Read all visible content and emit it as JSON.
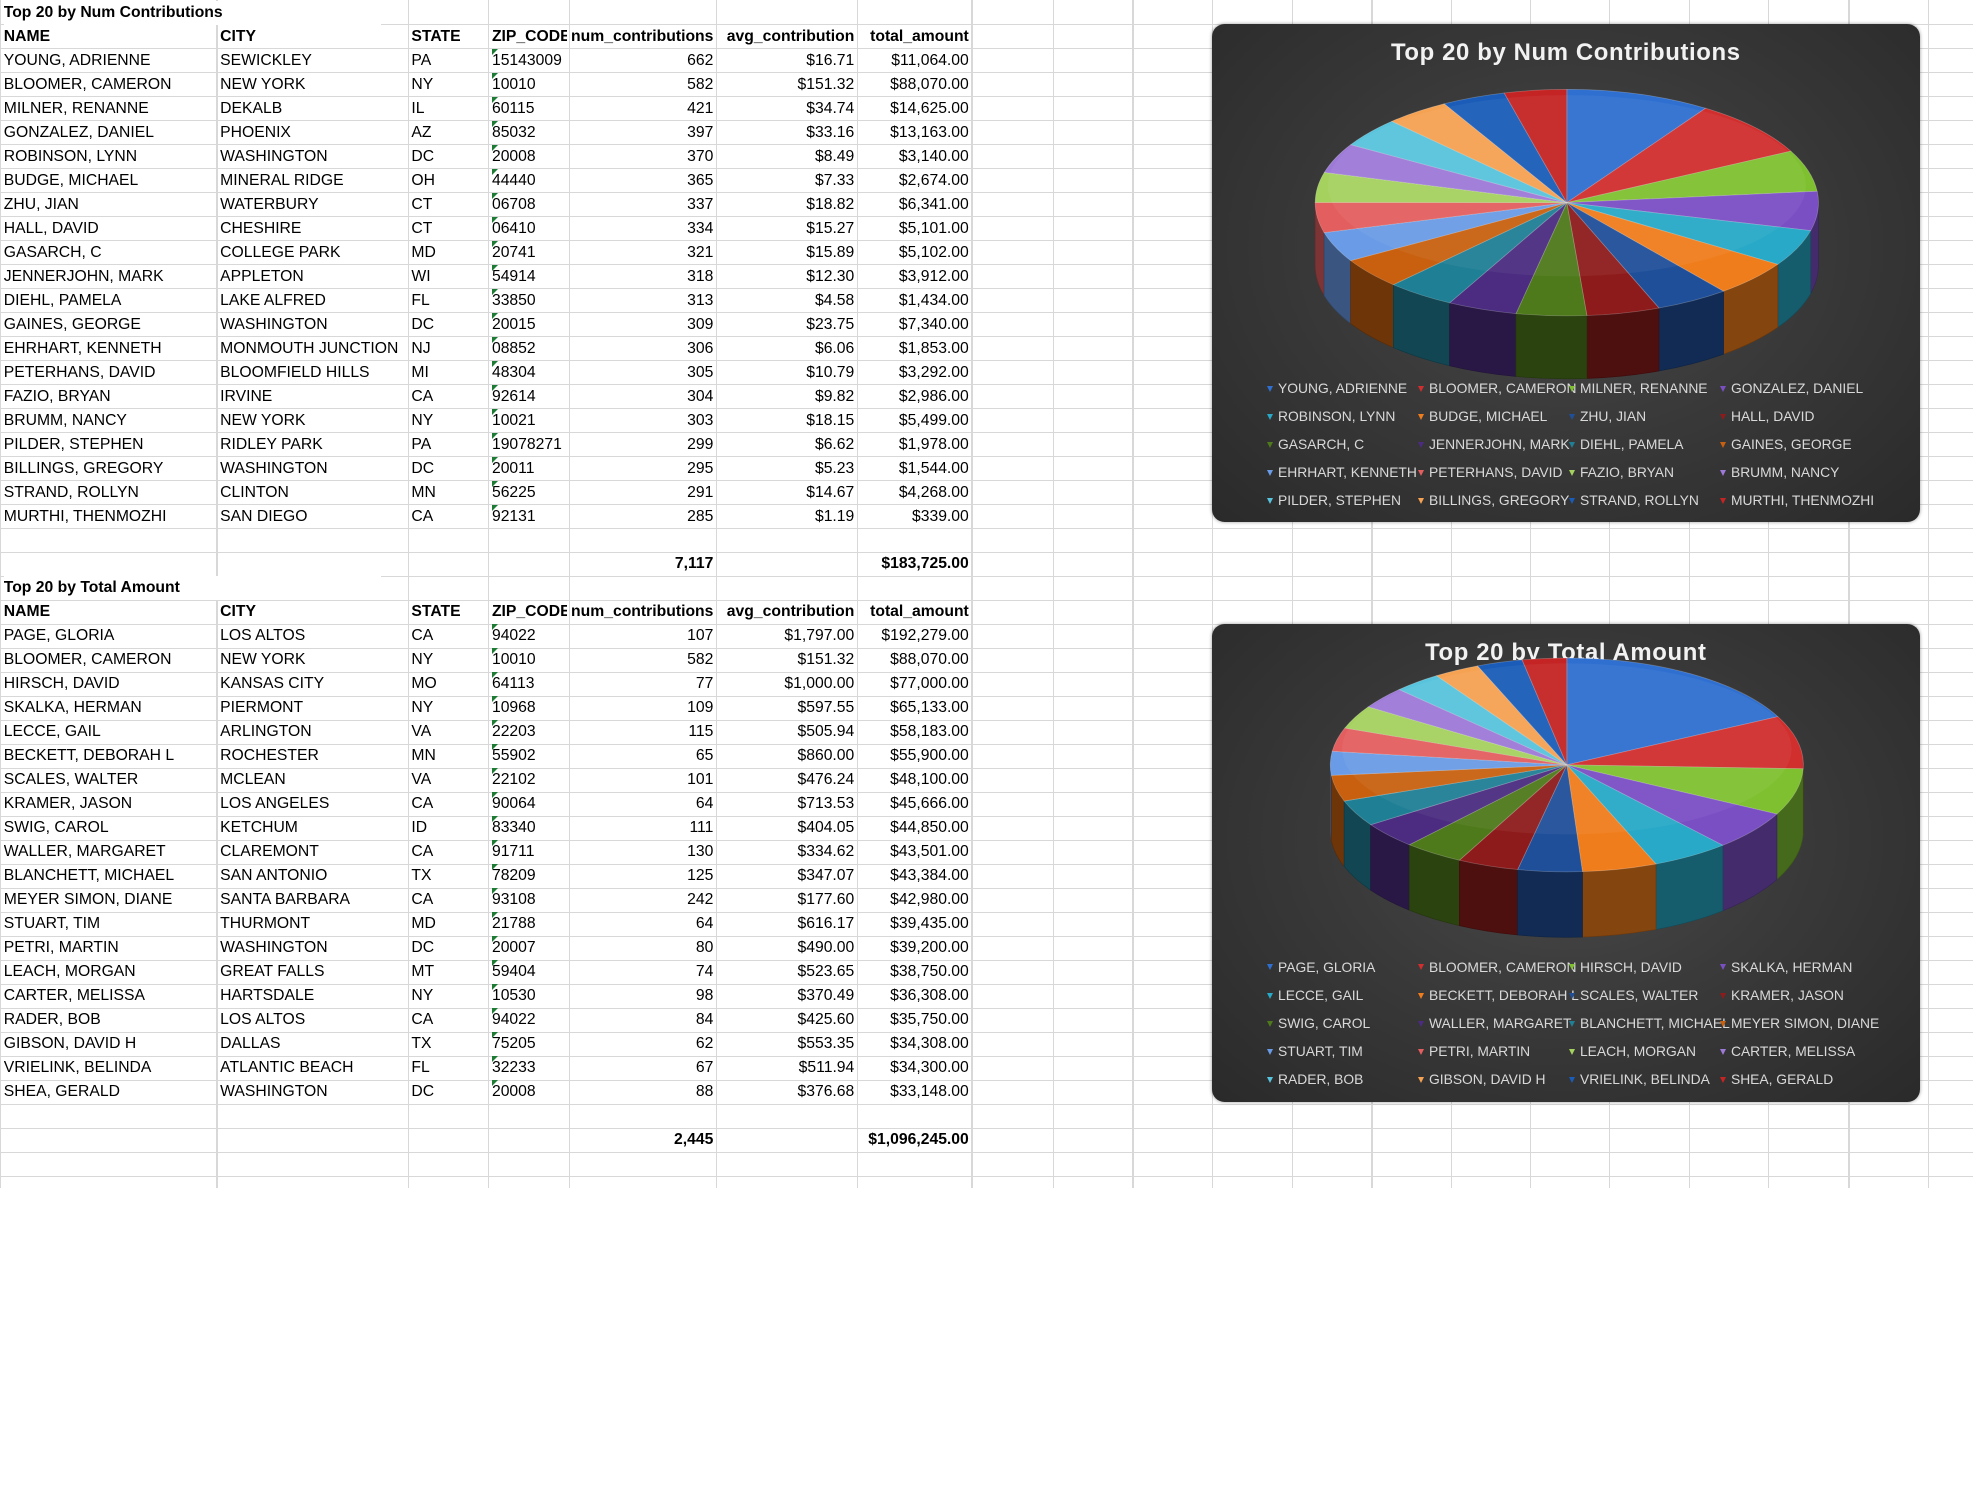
{
  "colors": [
    "#2f6fd0",
    "#d12e2e",
    "#7fc031",
    "#7b4fc4",
    "#27a9c7",
    "#f07d1c",
    "#1f4f99",
    "#8e1b1b",
    "#4f7a1b",
    "#4b2c80",
    "#1f7f95",
    "#c8600f",
    "#6a9be6",
    "#e35e5e",
    "#a5d15e",
    "#9d7ad8",
    "#58c3dc",
    "#f6a253",
    "#1a5cb8",
    "#c42424"
  ],
  "table1": {
    "title": "Top 20 by Num Contributions",
    "headers": [
      "NAME",
      "CITY",
      "STATE",
      "ZIP_CODE",
      "num_contributions",
      "avg_contribution",
      "total_amount"
    ],
    "rows": [
      [
        "YOUNG, ADRIENNE",
        "SEWICKLEY",
        "PA",
        "15143009",
        "662",
        "$16.71",
        "$11,064.00"
      ],
      [
        "BLOOMER, CAMERON",
        "NEW YORK",
        "NY",
        "10010",
        "582",
        "$151.32",
        "$88,070.00"
      ],
      [
        "MILNER, RENANNE",
        "DEKALB",
        "IL",
        "60115",
        "421",
        "$34.74",
        "$14,625.00"
      ],
      [
        "GONZALEZ, DANIEL",
        "PHOENIX",
        "AZ",
        "85032",
        "397",
        "$33.16",
        "$13,163.00"
      ],
      [
        "ROBINSON, LYNN",
        "WASHINGTON",
        "DC",
        "20008",
        "370",
        "$8.49",
        "$3,140.00"
      ],
      [
        "BUDGE, MICHAEL",
        "MINERAL RIDGE",
        "OH",
        "44440",
        "365",
        "$7.33",
        "$2,674.00"
      ],
      [
        "ZHU, JIAN",
        "WATERBURY",
        "CT",
        "06708",
        "337",
        "$18.82",
        "$6,341.00"
      ],
      [
        "HALL, DAVID",
        "CHESHIRE",
        "CT",
        "06410",
        "334",
        "$15.27",
        "$5,101.00"
      ],
      [
        "GASARCH, C",
        "COLLEGE PARK",
        "MD",
        "20741",
        "321",
        "$15.89",
        "$5,102.00"
      ],
      [
        "JENNERJOHN, MARK",
        "APPLETON",
        "WI",
        "54914",
        "318",
        "$12.30",
        "$3,912.00"
      ],
      [
        "DIEHL, PAMELA",
        "LAKE ALFRED",
        "FL",
        "33850",
        "313",
        "$4.58",
        "$1,434.00"
      ],
      [
        "GAINES, GEORGE",
        "WASHINGTON",
        "DC",
        "20015",
        "309",
        "$23.75",
        "$7,340.00"
      ],
      [
        "EHRHART, KENNETH",
        "MONMOUTH JUNCTION",
        "NJ",
        "08852",
        "306",
        "$6.06",
        "$1,853.00"
      ],
      [
        "PETERHANS, DAVID",
        "BLOOMFIELD HILLS",
        "MI",
        "48304",
        "305",
        "$10.79",
        "$3,292.00"
      ],
      [
        "FAZIO, BRYAN",
        "IRVINE",
        "CA",
        "92614",
        "304",
        "$9.82",
        "$2,986.00"
      ],
      [
        "BRUMM, NANCY",
        "NEW YORK",
        "NY",
        "10021",
        "303",
        "$18.15",
        "$5,499.00"
      ],
      [
        "PILDER, STEPHEN",
        "RIDLEY PARK",
        "PA",
        "19078271",
        "299",
        "$6.62",
        "$1,978.00"
      ],
      [
        "BILLINGS, GREGORY",
        "WASHINGTON",
        "DC",
        "20011",
        "295",
        "$5.23",
        "$1,544.00"
      ],
      [
        "STRAND, ROLLYN",
        "CLINTON",
        "MN",
        "56225",
        "291",
        "$14.67",
        "$4,268.00"
      ],
      [
        "MURTHI, THENMOZHI",
        "SAN DIEGO",
        "CA",
        "92131",
        "285",
        "$1.19",
        "$339.00"
      ]
    ],
    "total_num": "7,117",
    "total_amount": "$183,725.00"
  },
  "table2": {
    "title": "Top 20 by Total Amount",
    "headers": [
      "NAME",
      "CITY",
      "STATE",
      "ZIP_CODE",
      "num_contributions",
      "avg_contribution",
      "total_amount"
    ],
    "rows": [
      [
        "PAGE, GLORIA",
        "LOS ALTOS",
        "CA",
        "94022",
        "107",
        "$1,797.00",
        "$192,279.00"
      ],
      [
        "BLOOMER, CAMERON",
        "NEW YORK",
        "NY",
        "10010",
        "582",
        "$151.32",
        "$88,070.00"
      ],
      [
        "HIRSCH, DAVID",
        "KANSAS CITY",
        "MO",
        "64113",
        "77",
        "$1,000.00",
        "$77,000.00"
      ],
      [
        "SKALKA, HERMAN",
        "PIERMONT",
        "NY",
        "10968",
        "109",
        "$597.55",
        "$65,133.00"
      ],
      [
        "LECCE, GAIL",
        "ARLINGTON",
        "VA",
        "22203",
        "115",
        "$505.94",
        "$58,183.00"
      ],
      [
        "BECKETT, DEBORAH L",
        "ROCHESTER",
        "MN",
        "55902",
        "65",
        "$860.00",
        "$55,900.00"
      ],
      [
        "SCALES, WALTER",
        "MCLEAN",
        "VA",
        "22102",
        "101",
        "$476.24",
        "$48,100.00"
      ],
      [
        "KRAMER, JASON",
        "LOS ANGELES",
        "CA",
        "90064",
        "64",
        "$713.53",
        "$45,666.00"
      ],
      [
        "SWIG, CAROL",
        "KETCHUM",
        "ID",
        "83340",
        "111",
        "$404.05",
        "$44,850.00"
      ],
      [
        "WALLER, MARGARET",
        "CLAREMONT",
        "CA",
        "91711",
        "130",
        "$334.62",
        "$43,501.00"
      ],
      [
        "BLANCHETT, MICHAEL",
        "SAN ANTONIO",
        "TX",
        "78209",
        "125",
        "$347.07",
        "$43,384.00"
      ],
      [
        "MEYER SIMON, DIANE",
        "SANTA BARBARA",
        "CA",
        "93108",
        "242",
        "$177.60",
        "$42,980.00"
      ],
      [
        "STUART, TIM",
        "THURMONT",
        "MD",
        "21788",
        "64",
        "$616.17",
        "$39,435.00"
      ],
      [
        "PETRI, MARTIN",
        "WASHINGTON",
        "DC",
        "20007",
        "80",
        "$490.00",
        "$39,200.00"
      ],
      [
        "LEACH, MORGAN",
        "GREAT FALLS",
        "MT",
        "59404",
        "74",
        "$523.65",
        "$38,750.00"
      ],
      [
        "CARTER, MELISSA",
        "HARTSDALE",
        "NY",
        "10530",
        "98",
        "$370.49",
        "$36,308.00"
      ],
      [
        "RADER, BOB",
        "LOS ALTOS",
        "CA",
        "94022",
        "84",
        "$425.60",
        "$35,750.00"
      ],
      [
        "GIBSON, DAVID H",
        "DALLAS",
        "TX",
        "75205",
        "62",
        "$553.35",
        "$34,308.00"
      ],
      [
        "VRIELINK, BELINDA",
        "ATLANTIC BEACH",
        "FL",
        "32233",
        "67",
        "$511.94",
        "$34,300.00"
      ],
      [
        "SHEA, GERALD",
        "WASHINGTON",
        "DC",
        "20008",
        "88",
        "$376.68",
        "$33,148.00"
      ]
    ],
    "total_num": "2,445",
    "total_amount": "$1,096,245.00"
  },
  "chart_data": [
    {
      "type": "pie",
      "title": "Top 20 by Num Contributions",
      "categories": [
        "YOUNG, ADRIENNE",
        "BLOOMER, CAMERON",
        "MILNER, RENANNE",
        "GONZALEZ, DANIEL",
        "ROBINSON, LYNN",
        "BUDGE, MICHAEL",
        "ZHU, JIAN",
        "HALL, DAVID",
        "GASARCH, C",
        "JENNERJOHN, MARK",
        "DIEHL, PAMELA",
        "GAINES, GEORGE",
        "EHRHART, KENNETH",
        "PETERHANS, DAVID",
        "FAZIO, BRYAN",
        "BRUMM, NANCY",
        "PILDER, STEPHEN",
        "BILLINGS, GREGORY",
        "STRAND, ROLLYN",
        "MURTHI, THENMOZHI"
      ],
      "values": [
        662,
        582,
        421,
        397,
        370,
        365,
        337,
        334,
        321,
        318,
        313,
        309,
        306,
        305,
        304,
        303,
        299,
        295,
        291,
        285
      ],
      "legend": "bottom"
    },
    {
      "type": "pie",
      "title": "Top 20 by Total Amount",
      "categories": [
        "PAGE, GLORIA",
        "BLOOMER, CAMERON",
        "HIRSCH, DAVID",
        "SKALKA, HERMAN",
        "LECCE, GAIL",
        "BECKETT, DEBORAH L",
        "SCALES, WALTER",
        "KRAMER, JASON",
        "SWIG, CAROL",
        "WALLER, MARGARET",
        "BLANCHETT, MICHAEL",
        "MEYER SIMON, DIANE",
        "STUART, TIM",
        "PETRI, MARTIN",
        "LEACH, MORGAN",
        "CARTER, MELISSA",
        "RADER, BOB",
        "GIBSON, DAVID H",
        "VRIELINK, BELINDA",
        "SHEA, GERALD"
      ],
      "values": [
        192279,
        88070,
        77000,
        65133,
        58183,
        55900,
        48100,
        45666,
        44850,
        43501,
        43384,
        42980,
        39435,
        39200,
        38750,
        36308,
        35750,
        34308,
        34300,
        33148
      ],
      "legend": "bottom"
    }
  ]
}
